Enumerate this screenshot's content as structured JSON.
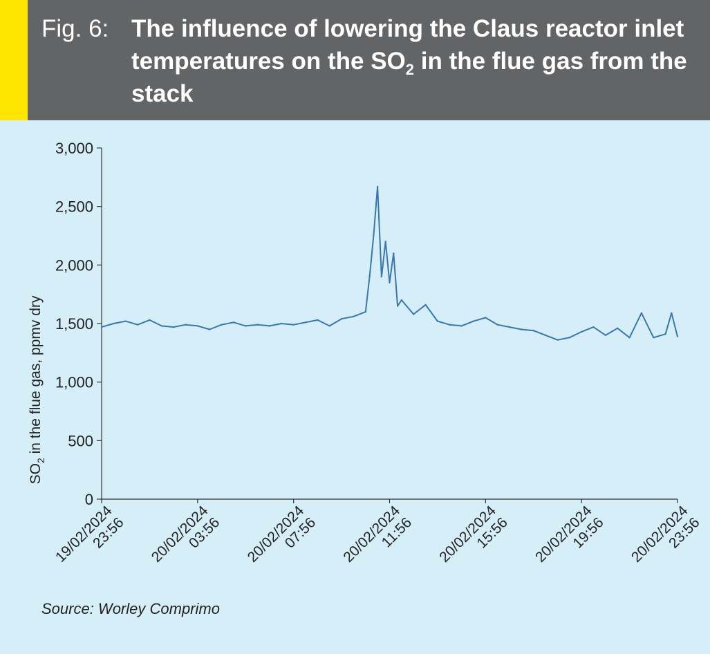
{
  "figure": {
    "label": "Fig. 6:",
    "title_part1": "The influence of lowering the Claus reactor inlet temperatures on the SO",
    "title_sub": "2",
    "title_part2": " in the flue gas from the stack",
    "source": "Source: Worley Comprimo"
  },
  "colors": {
    "header_bg": "#636466",
    "accent": "#ffe600",
    "panel_bg": "#d6eef8",
    "line": "#3a76b0",
    "axis": "#333333"
  },
  "chart_data": {
    "type": "line",
    "ylabel_main": "SO",
    "ylabel_sub": "2",
    "ylabel_rest": " in the flue gas, ppmv dry",
    "xlabel": "",
    "ylim": [
      0,
      3000
    ],
    "yticks": [
      0,
      500,
      1000,
      1500,
      2000,
      2500,
      3000
    ],
    "ytick_labels": [
      "0",
      "500",
      "1,000",
      "1,500",
      "2,000",
      "2,500",
      "3,000"
    ],
    "xlim": [
      "19/02/2024 23:56",
      "20/02/2024 23:56"
    ],
    "xticks": [
      {
        "date": "19/02/2024",
        "time": "23:56"
      },
      {
        "date": "20/02/2024",
        "time": "03:56"
      },
      {
        "date": "20/02/2024",
        "time": "07:56"
      },
      {
        "date": "20/02/2024",
        "time": "11:56"
      },
      {
        "date": "20/02/2024",
        "time": "15:56"
      },
      {
        "date": "20/02/2024",
        "time": "19:56"
      },
      {
        "date": "20/02/2024",
        "time": "23:56"
      }
    ],
    "grid": false,
    "series": [
      {
        "values": [
          {
            "t": "19/02/2024 23:56",
            "y": 1470
          },
          {
            "t": "20/02/2024 00:26",
            "y": 1500
          },
          {
            "t": "20/02/2024 00:56",
            "y": 1520
          },
          {
            "t": "20/02/2024 01:26",
            "y": 1490
          },
          {
            "t": "20/02/2024 01:56",
            "y": 1530
          },
          {
            "t": "20/02/2024 02:26",
            "y": 1480
          },
          {
            "t": "20/02/2024 02:56",
            "y": 1470
          },
          {
            "t": "20/02/2024 03:26",
            "y": 1490
          },
          {
            "t": "20/02/2024 03:56",
            "y": 1480
          },
          {
            "t": "20/02/2024 04:26",
            "y": 1450
          },
          {
            "t": "20/02/2024 04:56",
            "y": 1490
          },
          {
            "t": "20/02/2024 05:26",
            "y": 1510
          },
          {
            "t": "20/02/2024 05:56",
            "y": 1480
          },
          {
            "t": "20/02/2024 06:26",
            "y": 1490
          },
          {
            "t": "20/02/2024 06:56",
            "y": 1480
          },
          {
            "t": "20/02/2024 07:26",
            "y": 1500
          },
          {
            "t": "20/02/2024 07:56",
            "y": 1490
          },
          {
            "t": "20/02/2024 08:26",
            "y": 1510
          },
          {
            "t": "20/02/2024 08:56",
            "y": 1530
          },
          {
            "t": "20/02/2024 09:26",
            "y": 1480
          },
          {
            "t": "20/02/2024 09:56",
            "y": 1540
          },
          {
            "t": "20/02/2024 10:26",
            "y": 1560
          },
          {
            "t": "20/02/2024 10:56",
            "y": 1600
          },
          {
            "t": "20/02/2024 11:06",
            "y": 1900
          },
          {
            "t": "20/02/2024 11:16",
            "y": 2250
          },
          {
            "t": "20/02/2024 11:26",
            "y": 2670
          },
          {
            "t": "20/02/2024 11:36",
            "y": 1900
          },
          {
            "t": "20/02/2024 11:46",
            "y": 2200
          },
          {
            "t": "20/02/2024 11:56",
            "y": 1850
          },
          {
            "t": "20/02/2024 12:06",
            "y": 2100
          },
          {
            "t": "20/02/2024 12:16",
            "y": 1650
          },
          {
            "t": "20/02/2024 12:26",
            "y": 1700
          },
          {
            "t": "20/02/2024 12:56",
            "y": 1580
          },
          {
            "t": "20/02/2024 13:26",
            "y": 1660
          },
          {
            "t": "20/02/2024 13:56",
            "y": 1520
          },
          {
            "t": "20/02/2024 14:26",
            "y": 1490
          },
          {
            "t": "20/02/2024 14:56",
            "y": 1480
          },
          {
            "t": "20/02/2024 15:26",
            "y": 1520
          },
          {
            "t": "20/02/2024 15:56",
            "y": 1550
          },
          {
            "t": "20/02/2024 16:26",
            "y": 1490
          },
          {
            "t": "20/02/2024 16:56",
            "y": 1470
          },
          {
            "t": "20/02/2024 17:26",
            "y": 1450
          },
          {
            "t": "20/02/2024 17:56",
            "y": 1440
          },
          {
            "t": "20/02/2024 18:26",
            "y": 1400
          },
          {
            "t": "20/02/2024 18:56",
            "y": 1360
          },
          {
            "t": "20/02/2024 19:26",
            "y": 1380
          },
          {
            "t": "20/02/2024 19:56",
            "y": 1430
          },
          {
            "t": "20/02/2024 20:26",
            "y": 1470
          },
          {
            "t": "20/02/2024 20:56",
            "y": 1400
          },
          {
            "t": "20/02/2024 21:26",
            "y": 1460
          },
          {
            "t": "20/02/2024 21:56",
            "y": 1380
          },
          {
            "t": "20/02/2024 22:26",
            "y": 1590
          },
          {
            "t": "20/02/2024 22:56",
            "y": 1380
          },
          {
            "t": "20/02/2024 23:26",
            "y": 1410
          },
          {
            "t": "20/02/2024 23:41",
            "y": 1590
          },
          {
            "t": "20/02/2024 23:56",
            "y": 1390
          }
        ]
      }
    ]
  }
}
